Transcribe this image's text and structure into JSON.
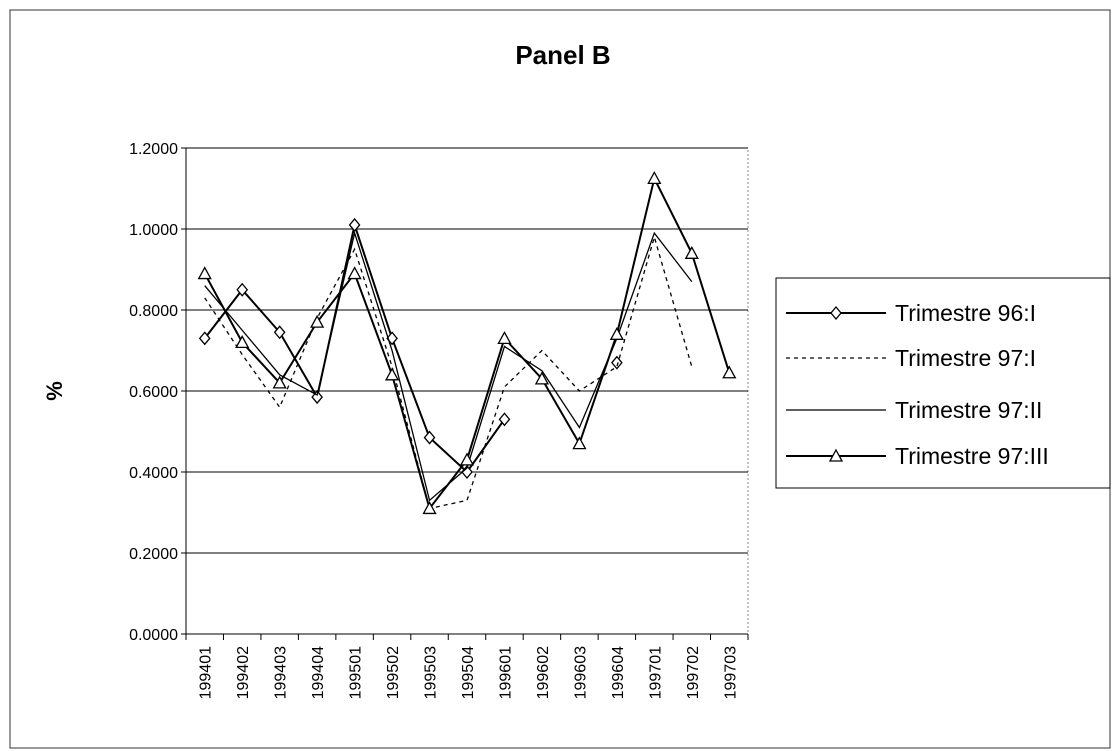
{
  "chart_data": {
    "type": "line",
    "title": "Panel B",
    "y_label": "%",
    "categories": [
      "199401",
      "199402",
      "199403",
      "199404",
      "199501",
      "199502",
      "199503",
      "199504",
      "199601",
      "199602",
      "199603",
      "199604",
      "199701",
      "199702",
      "199703"
    ],
    "series": [
      {
        "name": "Trimestre 96:I",
        "color": "#000000",
        "marker": "diamond",
        "dash": false,
        "values": [
          0.73,
          0.85,
          0.745,
          0.585,
          1.01,
          0.73,
          0.485,
          0.4,
          0.53,
          null,
          null,
          0.67,
          null,
          null,
          null
        ]
      },
      {
        "name": "Trimestre 97:I",
        "color": "#000000",
        "marker": "none",
        "dash": true,
        "values": [
          0.83,
          0.69,
          0.56,
          0.78,
          0.95,
          0.66,
          0.31,
          0.33,
          0.61,
          0.7,
          0.6,
          0.66,
          0.98,
          0.66,
          null
        ]
      },
      {
        "name": "Trimestre 97:II",
        "color": "#000000",
        "marker": "none",
        "dash": false,
        "values": [
          0.86,
          0.75,
          0.64,
          0.59,
          0.99,
          0.7,
          0.33,
          0.41,
          0.71,
          0.65,
          0.51,
          0.73,
          0.99,
          0.87,
          null
        ]
      },
      {
        "name": "Trimestre 97:III",
        "color": "#000000",
        "marker": "triangle",
        "dash": false,
        "values": [
          0.89,
          0.72,
          0.62,
          0.77,
          0.89,
          0.64,
          0.31,
          0.43,
          0.73,
          0.63,
          0.47,
          0.74,
          1.125,
          0.94,
          0.645
        ]
      }
    ],
    "ylim": [
      0,
      1.2
    ],
    "yticks": [
      {
        "value": 0,
        "label": "0.0000"
      },
      {
        "value": 0.2,
        "label": "0.2000"
      },
      {
        "value": 0.4,
        "label": "0.4000"
      },
      {
        "value": 0.6,
        "label": "0.6000"
      },
      {
        "value": 0.8,
        "label": "0.8000"
      },
      {
        "value": 1.0,
        "label": "1.0000"
      },
      {
        "value": 1.2,
        "label": "1.2000"
      }
    ],
    "grid": true,
    "legend": "right"
  }
}
